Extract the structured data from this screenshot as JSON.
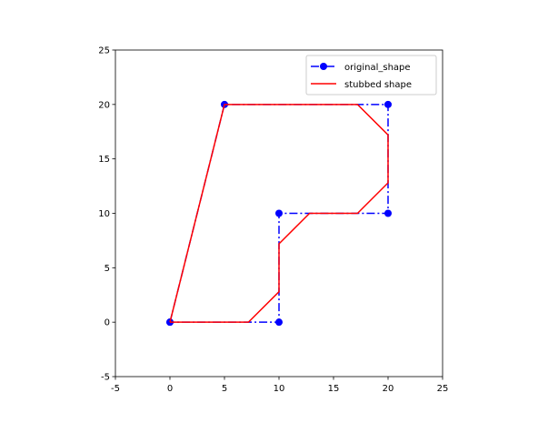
{
  "chart_data": {
    "type": "line",
    "title": "",
    "xlabel": "",
    "ylabel": "",
    "xlim": [
      -5,
      25
    ],
    "ylim": [
      -5,
      25
    ],
    "xticks": [
      -5,
      0,
      5,
      10,
      15,
      20,
      25
    ],
    "yticks": [
      -5,
      0,
      5,
      10,
      15,
      20,
      25
    ],
    "grid": false,
    "legend": "top-right",
    "series": [
      {
        "name": "original_shape",
        "color": "#0000ff",
        "linestyle": "dashdot",
        "marker": "circle",
        "x": [
          0,
          5,
          20,
          20,
          10,
          10,
          0
        ],
        "y": [
          0,
          20,
          20,
          10,
          10,
          0,
          0
        ]
      },
      {
        "name": "stubbed shape",
        "color": "#ff0000",
        "linestyle": "solid",
        "marker": "none",
        "x": [
          0,
          5,
          17.2,
          20,
          20,
          17.2,
          12.8,
          10,
          10,
          7.2,
          0
        ],
        "y": [
          0,
          20,
          20,
          17.2,
          12.8,
          10,
          10,
          7.2,
          2.8,
          0,
          0
        ]
      }
    ]
  }
}
